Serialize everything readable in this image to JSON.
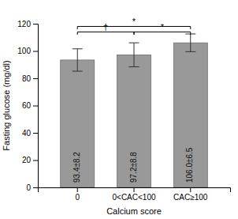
{
  "chart_data": {
    "type": "bar",
    "categories": [
      "0",
      "0<CAC<100",
      "CAC≥100"
    ],
    "values": [
      93.4,
      97.2,
      106.0
    ],
    "errors": [
      8.2,
      8.8,
      6.5
    ],
    "data_labels": true,
    "value_labels": [
      "93.4±8.2",
      "97.2±8.8",
      "106.0±6.5"
    ],
    "color": "#999999",
    "xlabel": "Calcium score",
    "ylabel": "Fasting glucose (mg/dl)",
    "ylim": [
      0,
      120
    ],
    "yticks": [
      0,
      20,
      40,
      60,
      80,
      100,
      120
    ],
    "grid": false,
    "annotations": [
      {
        "text": "†",
        "from": "0",
        "to": "0<CAC<100",
        "y": 114,
        "drop": 2
      },
      {
        "text": "*",
        "from": "0<CAC<100",
        "to": "CAC≥100",
        "y": 114,
        "drop": 2
      },
      {
        "text": "*",
        "from": "0",
        "to": "CAC≥100",
        "y": 118,
        "drop": 2
      }
    ]
  }
}
